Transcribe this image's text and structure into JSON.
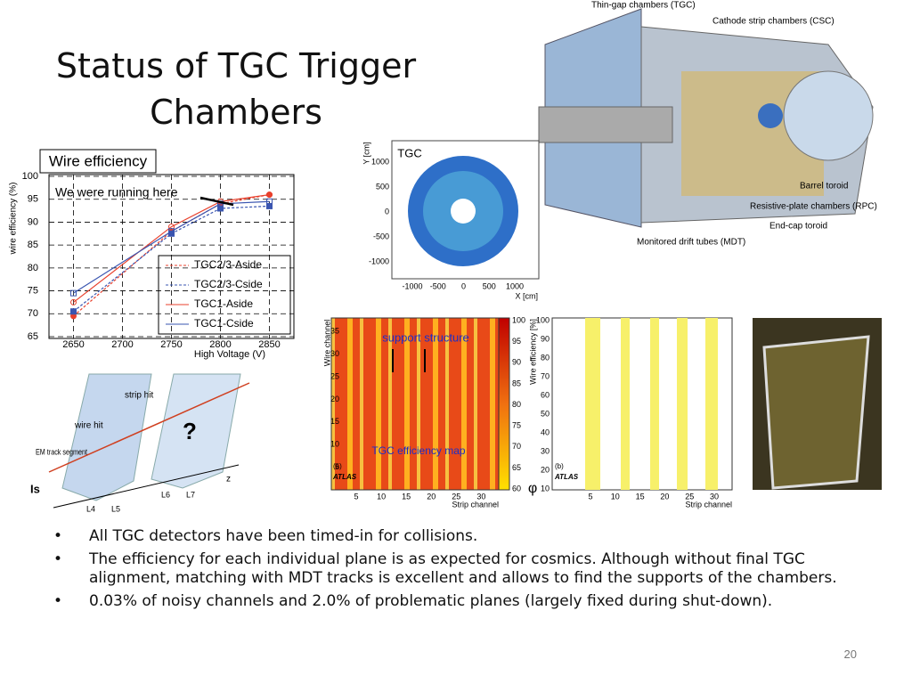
{
  "title": "Status of TGC Trigger Chambers",
  "bullets": [
    "All TGC detectors have been timed-in for collisions.",
    "The efficiency for each individual plane is as expected for cosmics. Although without final TGC alignment, matching with MDT tracks is excellent and allows to find the supports of the chambers.",
    "0.03% of noisy channels and 2.0% of problematic planes (largely fixed during shut-down)."
  ],
  "page_number": "20",
  "wire_efficiency": {
    "title": "Wire efficiency",
    "annotation": "We were running here",
    "xlabel": "High Voltage (V)",
    "ylabel": "wire efficiency (%)",
    "xlim": [
      2625,
      2875
    ],
    "ylim": [
      65,
      100
    ],
    "xticks": [
      2650,
      2700,
      2750,
      2800,
      2850
    ],
    "yticks": [
      65,
      70,
      75,
      80,
      85,
      90,
      95,
      100
    ],
    "x": [
      2650,
      2750,
      2800,
      2850
    ],
    "series": [
      {
        "name": "TGC2/3-Aside",
        "color": "#e8402c",
        "values": [
          69.5,
          88,
          94,
          96
        ]
      },
      {
        "name": "TGC2/3-Cside",
        "color": "#3a55b0",
        "values": [
          70.5,
          87.5,
          93,
          93.5
        ]
      },
      {
        "name": "TGC1-Aside",
        "color": "#e8402c",
        "values": [
          72.5,
          89,
          94.5,
          96
        ]
      },
      {
        "name": "TGC1-Cside",
        "color": "#3a55b0",
        "values": [
          74.5,
          88,
          94,
          94.5
        ]
      }
    ]
  },
  "tgc_map": {
    "label": "TGC",
    "xlabel": "X [cm]",
    "ylabel": "Y [cm]",
    "ticks": [
      -1000,
      -500,
      0,
      500,
      1000
    ]
  },
  "detector": {
    "labels": [
      "Thin-gap chambers (TGC)",
      "Cathode strip chambers (CSC)",
      "Barrel toroid",
      "Resistive-plate chambers (RPC)",
      "End-cap toroid",
      "Monitored drift tubes (MDT)"
    ]
  },
  "efficiency_map": {
    "annotation": "support structure",
    "label": "TGC efficiency map",
    "panel": "(a)",
    "atlas": "ATLAS",
    "ylabel": "Wire channel",
    "xlabel": "Strip channel",
    "xticks": [
      5,
      10,
      15,
      20,
      25,
      30
    ],
    "yticks": [
      5,
      10,
      15,
      20,
      25,
      30,
      35
    ],
    "zticks": [
      60,
      65,
      70,
      75,
      80,
      85,
      90,
      95,
      100
    ],
    "zlabel": "φ"
  },
  "strip_plot": {
    "panel": "(b)",
    "atlas": "ATLAS",
    "ylabel": "Wire efficiency [%]",
    "xlabel": "Strip channel",
    "xticks": [
      5,
      10,
      15,
      20,
      25,
      30
    ],
    "yticks": [
      10,
      20,
      30,
      40,
      50,
      60,
      70,
      80,
      90,
      100
    ]
  },
  "diagram": {
    "labels": [
      "strip hit",
      "wire hit",
      "EM track segment",
      "?",
      "Is",
      "L4",
      "L5",
      "L6",
      "L7",
      "z"
    ]
  }
}
